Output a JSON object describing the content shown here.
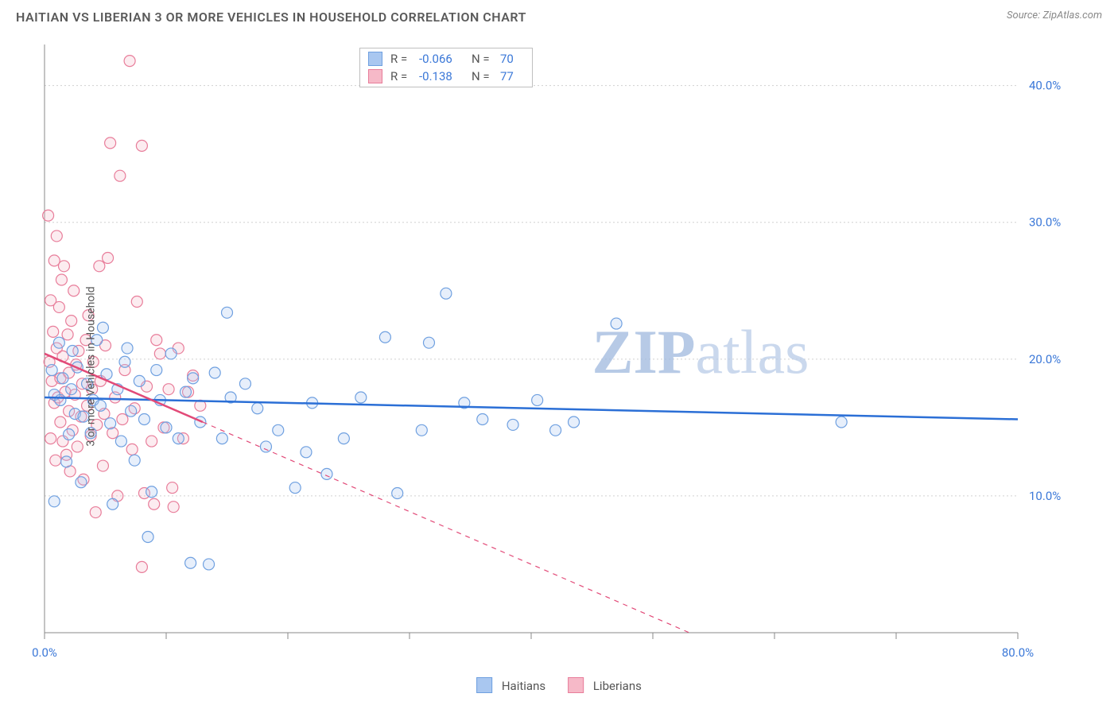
{
  "title": "HAITIAN VS LIBERIAN 3 OR MORE VEHICLES IN HOUSEHOLD CORRELATION CHART",
  "source_label": "Source:",
  "source_name": "ZipAtlas.com",
  "ylabel": "3 or more Vehicles in Household",
  "watermark_a": "ZIP",
  "watermark_b": "atlas",
  "chart": {
    "type": "scatter",
    "xlim": [
      0,
      80
    ],
    "ylim": [
      0,
      43
    ],
    "yticks": [
      10,
      20,
      30,
      40
    ],
    "ytick_labels": [
      "10.0%",
      "20.0%",
      "30.0%",
      "40.0%"
    ],
    "xtick_positions": [
      0,
      10,
      20,
      30,
      40,
      50,
      60,
      70,
      80
    ],
    "x_end_labels": [
      "0.0%",
      "80.0%"
    ],
    "grid_color": "#d0d0d0",
    "background": "#ffffff",
    "point_radius": 7,
    "series": [
      {
        "name": "Haitians",
        "color_fill": "#a9c7f0",
        "color_stroke": "#6fa0e0",
        "trend_color": "#2b6fd6",
        "trend_style": "solid",
        "trend": {
          "x1": 0,
          "y1": 17.2,
          "x2": 80,
          "y2": 15.6
        },
        "stats": {
          "R": "-0.066",
          "N": "70"
        },
        "points": [
          [
            0.6,
            19.2
          ],
          [
            0.8,
            17.4
          ],
          [
            0.8,
            9.6
          ],
          [
            1.2,
            21.2
          ],
          [
            1.3,
            17.0
          ],
          [
            1.5,
            18.6
          ],
          [
            1.8,
            12.5
          ],
          [
            2.2,
            17.8
          ],
          [
            2.3,
            20.6
          ],
          [
            2.5,
            16.0
          ],
          [
            2.7,
            19.4
          ],
          [
            3.0,
            11.0
          ],
          [
            3.2,
            15.8
          ],
          [
            3.5,
            18.2
          ],
          [
            3.8,
            14.6
          ],
          [
            4.0,
            17.0
          ],
          [
            4.3,
            21.4
          ],
          [
            4.6,
            16.6
          ],
          [
            4.8,
            22.3
          ],
          [
            5.1,
            18.9
          ],
          [
            5.4,
            15.3
          ],
          [
            5.6,
            9.4
          ],
          [
            6.0,
            17.8
          ],
          [
            6.3,
            14.0
          ],
          [
            6.6,
            19.8
          ],
          [
            6.8,
            20.8
          ],
          [
            7.1,
            16.2
          ],
          [
            7.4,
            12.6
          ],
          [
            7.8,
            18.4
          ],
          [
            8.2,
            15.6
          ],
          [
            8.8,
            10.3
          ],
          [
            9.2,
            19.2
          ],
          [
            9.5,
            17.0
          ],
          [
            10.0,
            15.0
          ],
          [
            10.4,
            20.4
          ],
          [
            11.0,
            14.2
          ],
          [
            11.6,
            17.6
          ],
          [
            12.2,
            18.6
          ],
          [
            12.8,
            15.4
          ],
          [
            13.5,
            5.0
          ],
          [
            14.0,
            19.0
          ],
          [
            14.6,
            14.2
          ],
          [
            15.0,
            23.4
          ],
          [
            15.3,
            17.2
          ],
          [
            16.5,
            18.2
          ],
          [
            17.5,
            16.4
          ],
          [
            18.2,
            13.6
          ],
          [
            19.2,
            14.8
          ],
          [
            20.6,
            10.6
          ],
          [
            21.5,
            13.2
          ],
          [
            22.0,
            16.8
          ],
          [
            23.2,
            11.6
          ],
          [
            24.6,
            14.2
          ],
          [
            26.0,
            17.2
          ],
          [
            28.0,
            21.6
          ],
          [
            29.0,
            10.2
          ],
          [
            31.0,
            14.8
          ],
          [
            31.6,
            21.2
          ],
          [
            33.0,
            24.8
          ],
          [
            34.5,
            16.8
          ],
          [
            36.0,
            15.6
          ],
          [
            38.5,
            15.2
          ],
          [
            40.5,
            17.0
          ],
          [
            42.0,
            14.8
          ],
          [
            43.5,
            15.4
          ],
          [
            47.0,
            22.6
          ],
          [
            65.5,
            15.4
          ],
          [
            12.0,
            5.1
          ],
          [
            8.5,
            7.0
          ],
          [
            2.0,
            14.5
          ]
        ]
      },
      {
        "name": "Liberians",
        "color_fill": "#f6b9c8",
        "color_stroke": "#e87d9a",
        "trend_color": "#e24a78",
        "trend_style": "solid-then-dashed",
        "trend_solid": {
          "x1": 0,
          "y1": 20.4,
          "x2": 13,
          "y2": 15.4
        },
        "trend_dashed": {
          "x1": 13,
          "y1": 15.4,
          "x2": 53,
          "y2": 0
        },
        "stats": {
          "R": "-0.138",
          "N": "77"
        },
        "points": [
          [
            0.3,
            30.5
          ],
          [
            0.4,
            19.8
          ],
          [
            0.5,
            14.2
          ],
          [
            0.5,
            24.3
          ],
          [
            0.6,
            18.4
          ],
          [
            0.7,
            22.0
          ],
          [
            0.8,
            27.2
          ],
          [
            0.8,
            16.8
          ],
          [
            0.9,
            12.6
          ],
          [
            1.0,
            20.8
          ],
          [
            1.0,
            29.0
          ],
          [
            1.1,
            17.2
          ],
          [
            1.2,
            23.8
          ],
          [
            1.3,
            15.4
          ],
          [
            1.3,
            18.6
          ],
          [
            1.4,
            25.8
          ],
          [
            1.5,
            14.0
          ],
          [
            1.5,
            20.2
          ],
          [
            1.6,
            26.8
          ],
          [
            1.7,
            17.6
          ],
          [
            1.8,
            13.0
          ],
          [
            1.9,
            21.8
          ],
          [
            2.0,
            19.0
          ],
          [
            2.0,
            16.2
          ],
          [
            2.1,
            11.8
          ],
          [
            2.2,
            22.8
          ],
          [
            2.3,
            14.8
          ],
          [
            2.4,
            25.0
          ],
          [
            2.5,
            17.4
          ],
          [
            2.6,
            19.6
          ],
          [
            2.7,
            13.6
          ],
          [
            2.8,
            20.6
          ],
          [
            3.0,
            15.8
          ],
          [
            3.1,
            18.2
          ],
          [
            3.2,
            11.2
          ],
          [
            3.4,
            21.4
          ],
          [
            3.5,
            16.6
          ],
          [
            3.6,
            23.2
          ],
          [
            3.8,
            14.4
          ],
          [
            3.9,
            17.8
          ],
          [
            4.0,
            19.8
          ],
          [
            4.2,
            8.8
          ],
          [
            4.3,
            15.2
          ],
          [
            4.5,
            26.8
          ],
          [
            4.6,
            18.4
          ],
          [
            4.8,
            12.2
          ],
          [
            4.9,
            16.0
          ],
          [
            5.0,
            21.0
          ],
          [
            5.2,
            27.4
          ],
          [
            5.4,
            35.8
          ],
          [
            5.6,
            14.6
          ],
          [
            5.8,
            17.2
          ],
          [
            6.0,
            10.0
          ],
          [
            6.2,
            33.4
          ],
          [
            6.4,
            15.6
          ],
          [
            6.6,
            19.2
          ],
          [
            7.0,
            41.8
          ],
          [
            7.2,
            13.4
          ],
          [
            7.4,
            16.4
          ],
          [
            7.6,
            24.2
          ],
          [
            8.0,
            35.6
          ],
          [
            8.2,
            10.2
          ],
          [
            8.4,
            18.0
          ],
          [
            8.8,
            14.0
          ],
          [
            9.2,
            21.4
          ],
          [
            9.5,
            20.4
          ],
          [
            9.8,
            15.0
          ],
          [
            10.2,
            17.8
          ],
          [
            10.6,
            9.2
          ],
          [
            11.0,
            20.8
          ],
          [
            11.4,
            14.2
          ],
          [
            11.8,
            17.6
          ],
          [
            12.2,
            18.8
          ],
          [
            8.0,
            4.8
          ],
          [
            9.0,
            9.4
          ],
          [
            10.5,
            10.6
          ],
          [
            12.8,
            16.6
          ]
        ]
      }
    ]
  },
  "stat_labels": {
    "R": "R =",
    "N": "N ="
  },
  "legend_items": [
    "Haitians",
    "Liberians"
  ]
}
